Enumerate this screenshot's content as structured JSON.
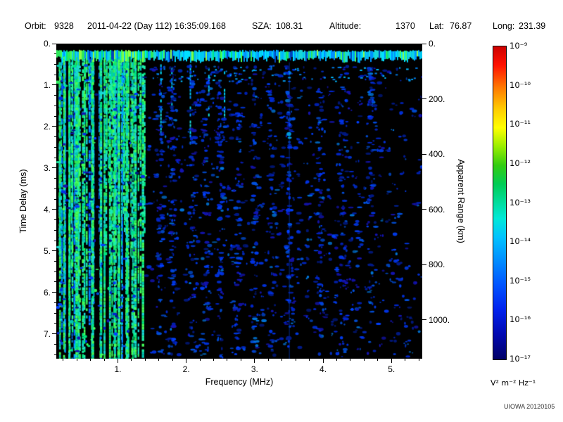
{
  "header": {
    "orbit_label": "Orbit:",
    "orbit_value": "9328",
    "datetime": "2011-04-22 (Day 112) 16:35:09.168",
    "sza_label": "SZA:",
    "sza_value": "108.31",
    "altitude_label": "Altitude:",
    "altitude_value": "1370",
    "lat_label": "Lat:",
    "lat_value": "76.87",
    "long_label": "Long:",
    "long_value": "231.39"
  },
  "watermark": "UIOWA 20120105",
  "chart_data": {
    "type": "heatmap",
    "title": "Orbit: 9328  2011-04-22 (Day 112) 16:35:09.168  SZA: 108.31  Altitude: 1370  Lat: 76.87  Long: 231.39",
    "xlabel": "Frequency (MHz)",
    "ylabel_left": "Time Delay (ms)",
    "ylabel_right": "Apparent Range (km)",
    "background": "#000000",
    "x_range_mhz": [
      0.1,
      5.45
    ],
    "y_range_ms": [
      0,
      7.6
    ],
    "km_per_ms": 150,
    "x_ticks": [
      {
        "label": "1.",
        "value": 1
      },
      {
        "label": "2.",
        "value": 2
      },
      {
        "label": "3.",
        "value": 3
      },
      {
        "label": "4.",
        "value": 4
      },
      {
        "label": "5.",
        "value": 5
      }
    ],
    "y_ticks": [
      {
        "label": "0.",
        "value": 0
      },
      {
        "label": "1.",
        "value": 1
      },
      {
        "label": "2.",
        "value": 2
      },
      {
        "label": "3.",
        "value": 3
      },
      {
        "label": "4.",
        "value": 4
      },
      {
        "label": "5.",
        "value": 5
      },
      {
        "label": "6.",
        "value": 6
      },
      {
        "label": "7.",
        "value": 7
      }
    ],
    "y2_ticks": [
      {
        "label": "0.",
        "km": 0
      },
      {
        "label": "200.",
        "km": 200
      },
      {
        "label": "400.",
        "km": 400
      },
      {
        "label": "600.",
        "km": 600
      },
      {
        "label": "800.",
        "km": 800
      },
      {
        "label": "1000.",
        "km": 1000
      }
    ],
    "colorbar": {
      "units": "V² m⁻² Hz⁻¹",
      "ticks": [
        "10⁻⁹",
        "10⁻¹⁰",
        "10⁻¹¹",
        "10⁻¹²",
        "10⁻¹³",
        "10⁻¹⁴",
        "10⁻¹⁵",
        "10⁻¹⁶",
        "10⁻¹⁷"
      ],
      "gradient": [
        [
          "0%",
          "#cc0000"
        ],
        [
          "6%",
          "#ff1100"
        ],
        [
          "13%",
          "#ff7700"
        ],
        [
          "20%",
          "#ffcc00"
        ],
        [
          "26%",
          "#ffff00"
        ],
        [
          "32%",
          "#99ee00"
        ],
        [
          "38%",
          "#33cc11"
        ],
        [
          "44%",
          "#00cc55"
        ],
        [
          "50%",
          "#00dd9e"
        ],
        [
          "55%",
          "#00e8d8"
        ],
        [
          "61%",
          "#00c2ff"
        ],
        [
          "68%",
          "#0090ff"
        ],
        [
          "76%",
          "#0055ff"
        ],
        [
          "84%",
          "#0022ee"
        ],
        [
          "92%",
          "#0008b0"
        ],
        [
          "100%",
          "#000066"
        ]
      ]
    },
    "features": {
      "seed": 9328,
      "surface_echo": {
        "t_ms": 0.3,
        "thickness_ms": 0.25,
        "cyan_colors": [
          "#00b4ff",
          "#00c8f0",
          "#00e0ff",
          "#0090ff",
          "#18d8d8"
        ],
        "green_colors": [
          "#2ee85a",
          "#45ff5a",
          "#00e87e",
          "#8cff46"
        ],
        "low_freq_green_fraction": 0.5,
        "high_freq_green_fraction": 0.2
      },
      "ionospheric_traces": {
        "f_min_mhz": 0.12,
        "f_max_mhz": 1.42,
        "main_lines_mhz": [
          0.14,
          0.2,
          0.28,
          0.38,
          0.5,
          0.62,
          0.74,
          0.87,
          1.0,
          1.12,
          1.24,
          1.35
        ],
        "colors": [
          "#2ee85a",
          "#45ff5a",
          "#00e87e",
          "#1ef0a8",
          "#18d8d8",
          "#00c8b4"
        ],
        "blue_colors": [
          "#0066ff",
          "#0080ff",
          "#00aaff"
        ],
        "random_streaks": 85
      },
      "hanging_streaks_mhz": [
        1.62,
        1.78,
        2.05,
        2.32,
        2.55
      ],
      "noise_speckle": {
        "f_bands_mhz": [
          1.62,
          1.8,
          2.1,
          2.3,
          2.5,
          2.75,
          3.0,
          3.25,
          3.5,
          3.95,
          4.3,
          4.7
        ],
        "colors": [
          "#001a88",
          "#0026cc",
          "#0033e6",
          "#0040ff",
          "#1414b4",
          "#0050dd"
        ],
        "highlight_color": "#0077dd",
        "count": 1500
      },
      "under_band_dots": {
        "color_choices": [
          "#0099ee",
          "#00bbff",
          "#0077dd"
        ],
        "count": 70
      },
      "vertical_line_mhz": 3.5
    }
  }
}
